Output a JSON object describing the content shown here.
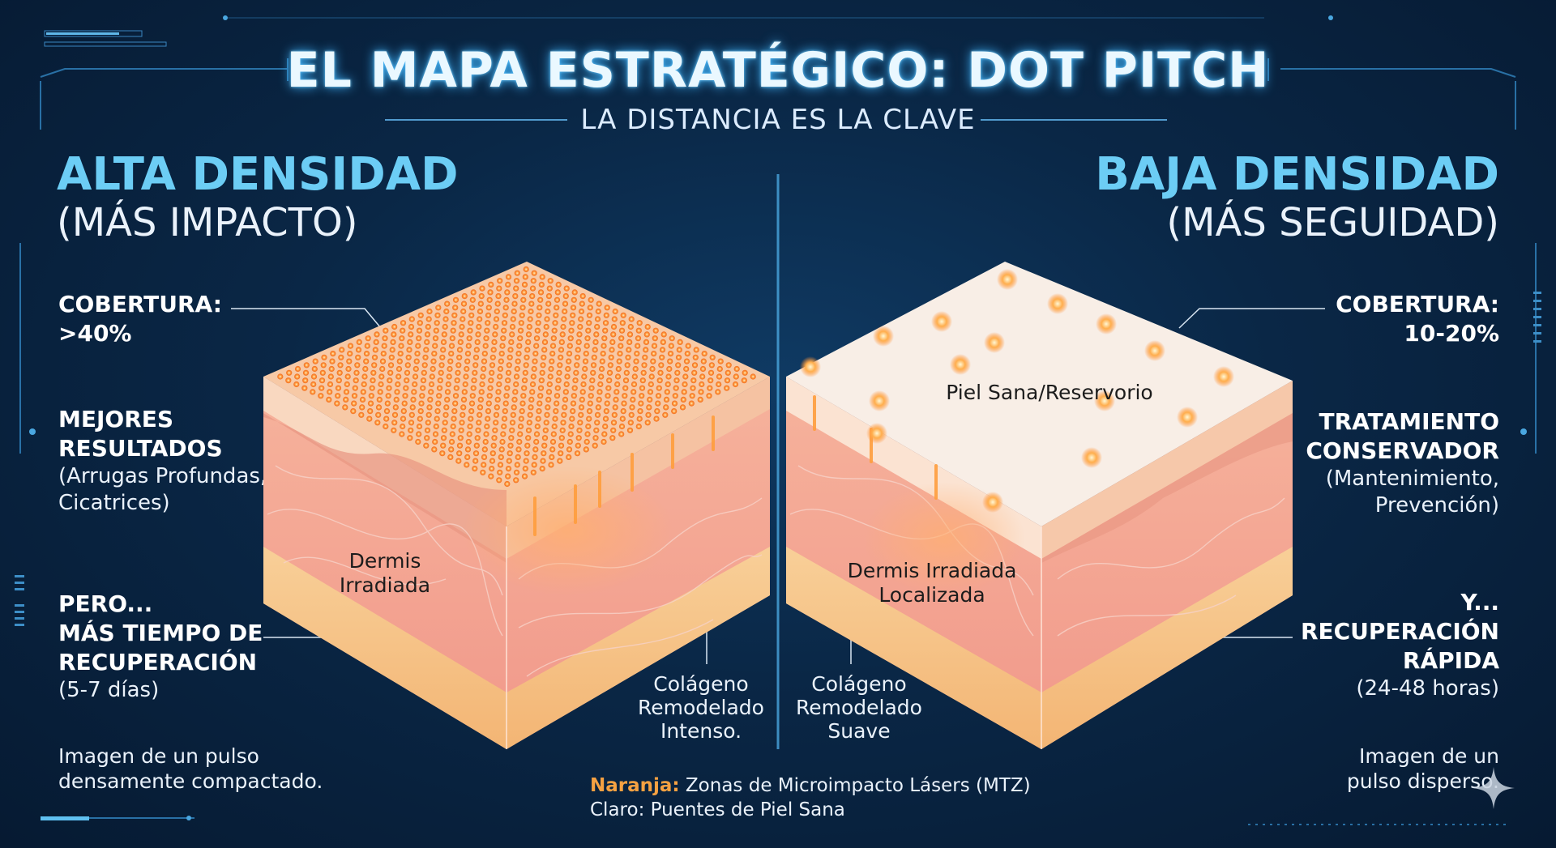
{
  "title": "EL MAPA ESTRATÉGICO: DOT PITCH",
  "subtitle": "LA DISTANCIA ES LA CLAVE",
  "left": {
    "heading": "ALTA DENSIDAD",
    "subheading": "(MÁS IMPACTO)",
    "coverage_label": "COBERTURA:",
    "coverage_value": ">40%",
    "results_label_1": "MEJORES",
    "results_label_2": "RESULTADOS",
    "results_desc_1": "(Arrugas Profundas,",
    "results_desc_2": "Cicatrices)",
    "recovery_label_1": "PERO...",
    "recovery_label_2": "MÁS TIEMPO DE",
    "recovery_label_3": "RECUPERACIÓN",
    "recovery_value": "(5-7 días)",
    "caption_1": "Imagen de un pulso",
    "caption_2": "densamente compactado.",
    "dermis_label_1": "Dermis",
    "dermis_label_2": "Irradiada",
    "collagen_1": "Colágeno",
    "collagen_2": "Remodelado",
    "collagen_3": "Intenso."
  },
  "right": {
    "heading": "BAJA DENSIDAD",
    "subheading": "(MÁS SEGUIDAD)",
    "coverage_label": "COBERTURA:",
    "coverage_value": "10-20%",
    "treatment_label_1": "TRATAMIENTO",
    "treatment_label_2": "CONSERVADOR",
    "treatment_desc_1": "(Mantenimiento,",
    "treatment_desc_2": "Prevención)",
    "recovery_label_1": "Y...",
    "recovery_label_2": "RECUPERACIÓN",
    "recovery_label_3": "RÁPIDA",
    "recovery_value": "(24-48 horas)",
    "caption_1": "Imagen de un",
    "caption_2": "pulso disperso.",
    "healthy_label": "Piel Sana/Reservorio",
    "dermis_label_1": "Dermis Irradiada",
    "dermis_label_2": "Localizada",
    "collagen_1": "Colágeno",
    "collagen_2": "Remodelado",
    "collagen_3": "Suave"
  },
  "legend": {
    "orange_key": "Naranja:",
    "orange_text": "Zonas de Microimpacto Lásers (MTZ)",
    "light_text": "Claro: Puentes de Piel Sana"
  },
  "colors": {
    "accent_blue": "#6ccdf5",
    "orange": "#f5a142",
    "skin_top": "#f7e7dc",
    "dermis": "#f3a896",
    "fat": "#f6c48a"
  },
  "icons": {
    "sparkle": "sparkle-icon"
  }
}
